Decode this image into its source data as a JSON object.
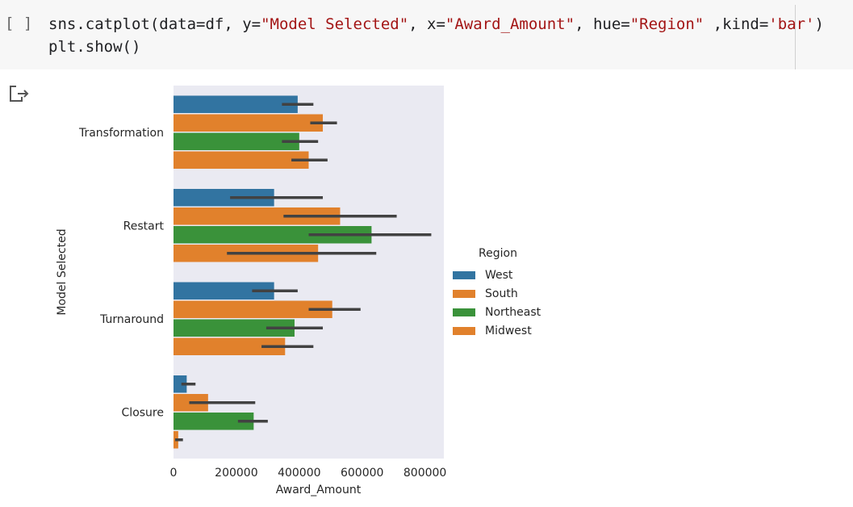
{
  "cell": {
    "run_label": "[ ]",
    "code_line1_a": "sns.catplot(data=df, y=",
    "code_str1": "\"Model Selected\"",
    "code_line1_b": ", x=",
    "code_str2": "\"Award_Amount\"",
    "code_line1_c": ", hue=",
    "code_str3": "\"Region\"",
    "code_line1_d": " ,kind=",
    "code_str4": "'bar'",
    "code_line1_e": ")",
    "code_line2": "plt.show()"
  },
  "output": {
    "icon": "output-arrow-icon"
  },
  "colors": {
    "plot_bg": "#eaeaf2",
    "West": "#3274a1",
    "South": "#e1812c",
    "Northeast": "#3a923a",
    "Midwest": "#e1812c",
    "error_bar": "#424242"
  },
  "chart_data": {
    "type": "bar",
    "orientation": "horizontal",
    "categories": [
      "Transformation",
      "Restart",
      "Turnaround",
      "Closure"
    ],
    "xlabel": "Award_Amount",
    "ylabel": "Model Selected",
    "xlim": [
      0,
      860000
    ],
    "xticks": [
      0,
      200000,
      400000,
      600000,
      800000
    ],
    "xtick_labels": [
      "0",
      "200000",
      "400000",
      "600000",
      "800000"
    ],
    "legend_title": "Region",
    "legend_position": "right",
    "grid": false,
    "series": [
      {
        "name": "West",
        "values": [
          395000,
          320000,
          320000,
          42000
        ],
        "ci": [
          [
            345000,
            445000
          ],
          [
            180000,
            475000
          ],
          [
            250000,
            395000
          ],
          [
            25000,
            70000
          ]
        ]
      },
      {
        "name": "South",
        "values": [
          475000,
          530000,
          505000,
          110000
        ],
        "ci": [
          [
            435000,
            520000
          ],
          [
            350000,
            710000
          ],
          [
            430000,
            595000
          ],
          [
            50000,
            260000
          ]
        ]
      },
      {
        "name": "Northeast",
        "values": [
          400000,
          630000,
          385000,
          255000
        ],
        "ci": [
          [
            345000,
            460000
          ],
          [
            430000,
            820000
          ],
          [
            295000,
            475000
          ],
          [
            205000,
            300000
          ]
        ]
      },
      {
        "name": "Midwest",
        "values": [
          430000,
          460000,
          355000,
          15000
        ],
        "ci": [
          [
            375000,
            490000
          ],
          [
            170000,
            645000
          ],
          [
            280000,
            445000
          ],
          [
            5000,
            30000
          ]
        ]
      }
    ]
  }
}
